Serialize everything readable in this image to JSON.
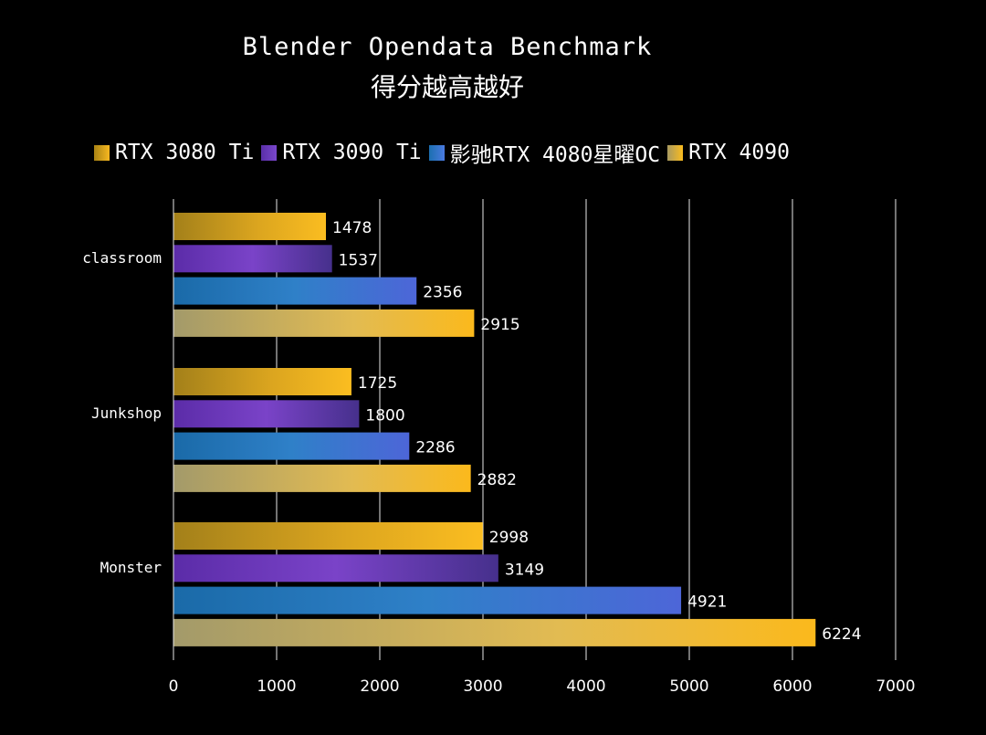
{
  "colors": {
    "background": "#000000",
    "rtx3080ti": "#f2b21e",
    "rtx3090ti": "#6a3cc0",
    "rtx4080": "#3f73d6",
    "rtx4090": "#fbbc1e"
  },
  "chart_data": {
    "type": "bar",
    "orientation": "horizontal",
    "title": "Blender Opendata Benchmark",
    "subtitle": "得分越高越好",
    "categories": [
      "classroom",
      "Junkshop",
      "Monster"
    ],
    "series": [
      {
        "name": "RTX 3080 Ti",
        "values": [
          1478,
          1725,
          2998
        ]
      },
      {
        "name": "RTX 3090 Ti",
        "values": [
          1537,
          1800,
          3149
        ]
      },
      {
        "name": "影驰RTX 4080星曜OC",
        "values": [
          2356,
          2286,
          4921
        ]
      },
      {
        "name": "RTX 4090",
        "values": [
          2915,
          2882,
          6224
        ]
      }
    ],
    "xlim": [
      0,
      7000
    ],
    "xticks": [
      "0",
      "1000",
      "2000",
      "3000",
      "4000",
      "5000",
      "6000",
      "7000"
    ],
    "grid": true,
    "legend_position": "top"
  }
}
